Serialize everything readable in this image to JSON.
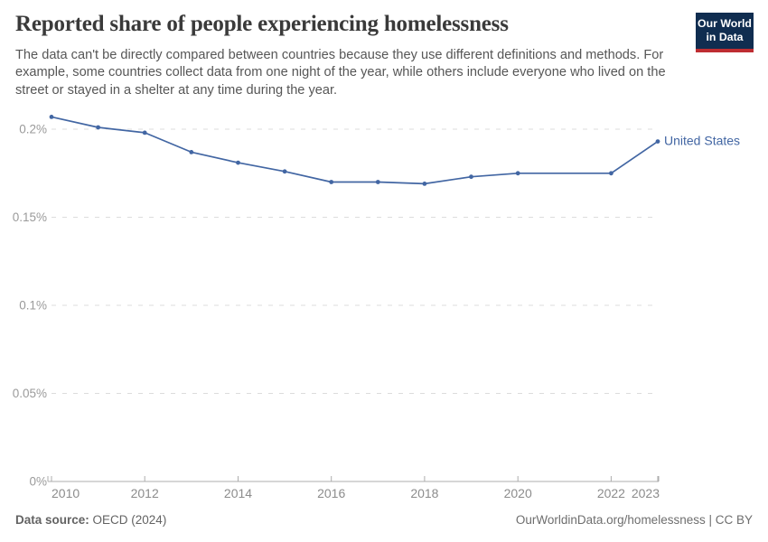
{
  "header": {
    "title": "Reported share of people experiencing homelessness",
    "logo": {
      "line1": "Our World",
      "line2": "in Data",
      "bg_color": "#102d50",
      "stripe_color": "#be2d32"
    }
  },
  "subtitle": "The data can't be directly compared between countries because they use different definitions and methods. For example, some countries collect data from one night of the year, while others include everyone who lived on the street or stayed in a shelter at any time during the year.",
  "chart_data": {
    "type": "line",
    "title": "Reported share of people experiencing homelessness",
    "unit": "%",
    "xlim": [
      2010,
      2023
    ],
    "ylim": [
      0,
      0.21
    ],
    "grid": "dashed-horizontal",
    "legend": "end-of-line-label",
    "missing_years": [
      2021
    ],
    "series": [
      {
        "name": "United States",
        "color": "#4266a3",
        "points": [
          [
            2010,
            0.207
          ],
          [
            2011,
            0.201
          ],
          [
            2012,
            0.198
          ],
          [
            2013,
            0.187
          ],
          [
            2014,
            0.181
          ],
          [
            2015,
            0.176
          ],
          [
            2016,
            0.17
          ],
          [
            2017,
            0.17
          ],
          [
            2018,
            0.169
          ],
          [
            2019,
            0.173
          ],
          [
            2020,
            0.175
          ],
          [
            2022,
            0.175
          ],
          [
            2023,
            0.193
          ]
        ]
      }
    ],
    "x_ticks": [
      {
        "v": 2010,
        "label": "2010"
      },
      {
        "v": 2012,
        "label": "2012"
      },
      {
        "v": 2014,
        "label": "2014"
      },
      {
        "v": 2016,
        "label": "2016"
      },
      {
        "v": 2018,
        "label": "2018"
      },
      {
        "v": 2020,
        "label": "2020"
      },
      {
        "v": 2022,
        "label": "2022"
      },
      {
        "v": 2023,
        "label": "2023"
      }
    ],
    "y_ticks": [
      {
        "v": 0,
        "label": "0%"
      },
      {
        "v": 0.05,
        "label": "0.05%"
      },
      {
        "v": 0.1,
        "label": "0.1%"
      },
      {
        "v": 0.15,
        "label": "0.15%"
      },
      {
        "v": 0.2,
        "label": "0.2%"
      }
    ],
    "colors": {
      "gridline": "#dcdcdc",
      "axis": "#adadad",
      "y_label": "#9a9a9a",
      "x_label": "#8c8c8c"
    }
  },
  "footer": {
    "source_label": "Data source:",
    "source_value": " OECD (2024)",
    "right": "OurWorldinData.org/homelessness | CC BY"
  }
}
